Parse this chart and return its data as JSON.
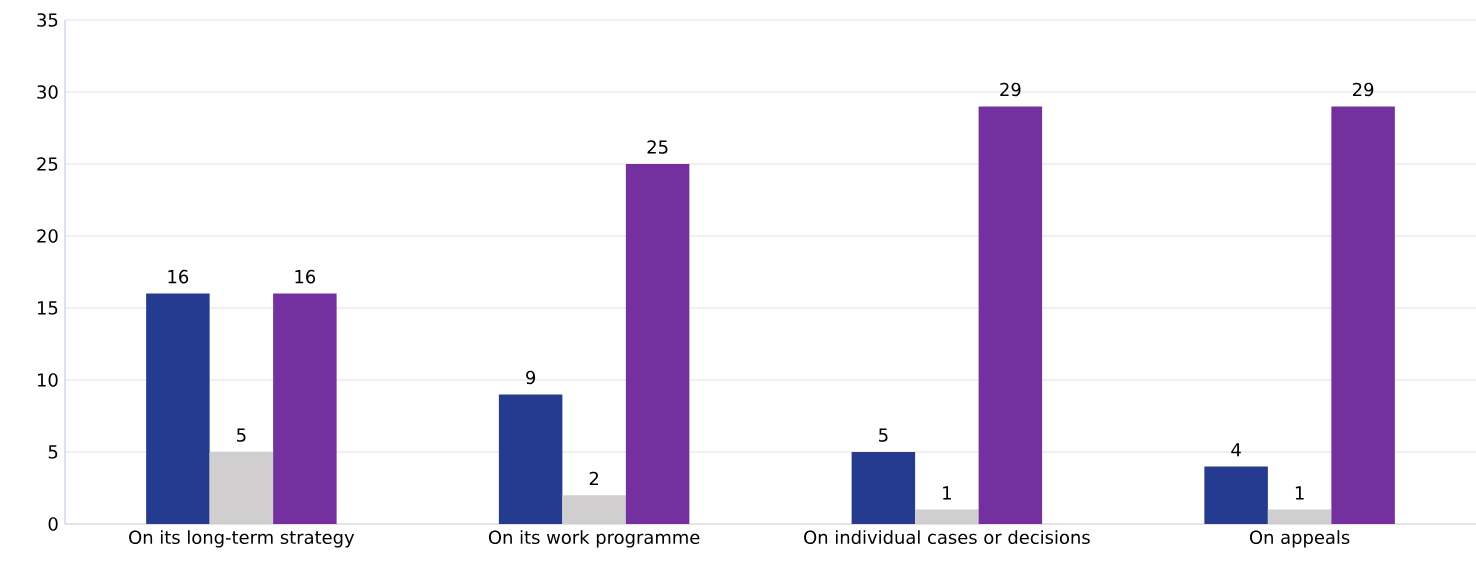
{
  "chart_data": {
    "type": "bar",
    "categories": [
      "On its long-term strategy",
      "On its work programme",
      "On individual cases or decisions",
      "On appeals"
    ],
    "series": [
      {
        "color": "#253b8f",
        "values": [
          16,
          9,
          5,
          4
        ]
      },
      {
        "color": "#d0cece",
        "values": [
          5,
          2,
          1,
          1
        ]
      },
      {
        "color": "#7530a0",
        "values": [
          16,
          25,
          29,
          29
        ]
      }
    ],
    "ylim": [
      0,
      35
    ],
    "yticks": [
      0,
      5,
      10,
      15,
      20,
      25,
      30,
      35
    ],
    "grid": "y",
    "data_labels": true
  }
}
